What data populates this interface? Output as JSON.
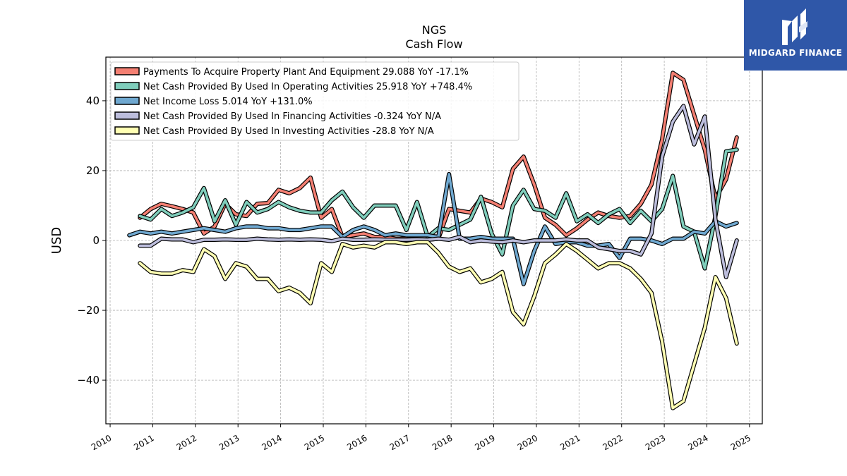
{
  "logo": {
    "text": "MIDGARD FINANCE",
    "color": "#2f57a8"
  },
  "chart_data": {
    "type": "line",
    "title": "NGS",
    "subtitle": "Cash Flow",
    "xlabel": "",
    "ylabel": "USD",
    "xlim": [
      2009.9,
      2025.3
    ],
    "ylim": [
      -52.5,
      52.5
    ],
    "x_ticks": [
      "2010",
      "2011",
      "2012",
      "2013",
      "2014",
      "2015",
      "2016",
      "2017",
      "2018",
      "2019",
      "2020",
      "2021",
      "2022",
      "2023",
      "2024",
      "2025"
    ],
    "y_ticks": [
      -40,
      -20,
      0,
      20,
      40
    ],
    "y_tick_labels": [
      "−40",
      "−20",
      "0",
      "20",
      "40"
    ],
    "grid": true,
    "legend_position": "top-left",
    "series": [
      {
        "name": "Payments To Acquire Property Plant And Equipment  29.088 YoY -17.1%",
        "color": "#f47f72",
        "points": [
          [
            2010.7,
            6.5
          ],
          [
            2010.95,
            9
          ],
          [
            2011.2,
            10.5
          ],
          [
            2011.45,
            9.8
          ],
          [
            2011.7,
            9
          ],
          [
            2011.95,
            8
          ],
          [
            2012.2,
            2
          ],
          [
            2012.45,
            4
          ],
          [
            2012.7,
            10.5
          ],
          [
            2012.95,
            7.5
          ],
          [
            2013.2,
            7
          ],
          [
            2013.45,
            10.5
          ],
          [
            2013.7,
            10.7
          ],
          [
            2013.95,
            14.5
          ],
          [
            2014.2,
            13.5
          ],
          [
            2014.45,
            15
          ],
          [
            2014.7,
            18
          ],
          [
            2014.95,
            6.5
          ],
          [
            2015.2,
            9
          ],
          [
            2015.45,
            1
          ],
          [
            2015.7,
            1.5
          ],
          [
            2015.95,
            2
          ],
          [
            2016.2,
            1
          ],
          [
            2016.45,
            1
          ],
          [
            2016.7,
            0.5
          ],
          [
            2016.95,
            0.5
          ],
          [
            2017.2,
            0.2
          ],
          [
            2017.45,
            0.2
          ],
          [
            2017.7,
            0.5
          ],
          [
            2017.95,
            9
          ],
          [
            2018.2,
            8.5
          ],
          [
            2018.45,
            8
          ],
          [
            2018.7,
            12
          ],
          [
            2018.95,
            11
          ],
          [
            2019.2,
            9.5
          ],
          [
            2019.45,
            20.5
          ],
          [
            2019.7,
            24
          ],
          [
            2019.95,
            16
          ],
          [
            2020.2,
            6.5
          ],
          [
            2020.45,
            4.5
          ],
          [
            2020.7,
            1.5
          ],
          [
            2020.95,
            3.5
          ],
          [
            2021.2,
            6
          ],
          [
            2021.45,
            8
          ],
          [
            2021.7,
            7
          ],
          [
            2021.95,
            6.5
          ],
          [
            2022.2,
            7
          ],
          [
            2022.45,
            10.5
          ],
          [
            2022.7,
            16
          ],
          [
            2022.95,
            29
          ],
          [
            2023.2,
            48
          ],
          [
            2023.45,
            46
          ],
          [
            2023.7,
            36
          ],
          [
            2023.95,
            26
          ],
          [
            2024.2,
            12
          ],
          [
            2024.45,
            17.5
          ],
          [
            2024.7,
            29.5
          ]
        ]
      },
      {
        "name": "Net Cash Provided By Used In Operating Activities  25.918 YoY +748.4%",
        "color": "#7fcdbb",
        "points": [
          [
            2010.7,
            7
          ],
          [
            2010.95,
            6
          ],
          [
            2011.2,
            9
          ],
          [
            2011.45,
            7
          ],
          [
            2011.7,
            8
          ],
          [
            2011.95,
            9.5
          ],
          [
            2012.2,
            15
          ],
          [
            2012.45,
            5.5
          ],
          [
            2012.7,
            11.5
          ],
          [
            2012.95,
            4.5
          ],
          [
            2013.2,
            11
          ],
          [
            2013.45,
            8
          ],
          [
            2013.7,
            9
          ],
          [
            2013.95,
            11
          ],
          [
            2014.2,
            9.5
          ],
          [
            2014.45,
            8.5
          ],
          [
            2014.7,
            8
          ],
          [
            2014.95,
            8
          ],
          [
            2015.2,
            11.5
          ],
          [
            2015.45,
            14
          ],
          [
            2015.7,
            9.5
          ],
          [
            2015.95,
            6.5
          ],
          [
            2016.2,
            10
          ],
          [
            2016.45,
            10
          ],
          [
            2016.7,
            10
          ],
          [
            2016.95,
            3
          ],
          [
            2017.2,
            11
          ],
          [
            2017.45,
            1
          ],
          [
            2017.7,
            3.5
          ],
          [
            2017.95,
            3
          ],
          [
            2018.2,
            4.5
          ],
          [
            2018.45,
            6
          ],
          [
            2018.7,
            12.5
          ],
          [
            2018.95,
            2
          ],
          [
            2019.2,
            -4
          ],
          [
            2019.45,
            10
          ],
          [
            2019.7,
            14.5
          ],
          [
            2019.95,
            9
          ],
          [
            2020.2,
            8.5
          ],
          [
            2020.45,
            6.5
          ],
          [
            2020.7,
            13.5
          ],
          [
            2020.95,
            5.5
          ],
          [
            2021.2,
            7.5
          ],
          [
            2021.45,
            5
          ],
          [
            2021.7,
            7.5
          ],
          [
            2021.95,
            9
          ],
          [
            2022.2,
            5
          ],
          [
            2022.45,
            8.5
          ],
          [
            2022.7,
            5.5
          ],
          [
            2022.95,
            9
          ],
          [
            2023.2,
            18.5
          ],
          [
            2023.45,
            4
          ],
          [
            2023.7,
            2.5
          ],
          [
            2023.95,
            -8
          ],
          [
            2024.2,
            7
          ],
          [
            2024.45,
            25.5
          ],
          [
            2024.7,
            26
          ]
        ]
      },
      {
        "name": "Net Income Loss  5.014 YoY +131.0%",
        "color": "#6fa8d0",
        "points": [
          [
            2010.45,
            1.5
          ],
          [
            2010.7,
            2.5
          ],
          [
            2010.95,
            2
          ],
          [
            2011.2,
            2.5
          ],
          [
            2011.45,
            2
          ],
          [
            2011.7,
            2.5
          ],
          [
            2011.95,
            3
          ],
          [
            2012.2,
            3.5
          ],
          [
            2012.45,
            3
          ],
          [
            2012.7,
            2.5
          ],
          [
            2012.95,
            3.5
          ],
          [
            2013.2,
            4
          ],
          [
            2013.45,
            4
          ],
          [
            2013.7,
            3.5
          ],
          [
            2013.95,
            3.5
          ],
          [
            2014.2,
            3
          ],
          [
            2014.45,
            3
          ],
          [
            2014.7,
            3.5
          ],
          [
            2014.95,
            4
          ],
          [
            2015.2,
            4
          ],
          [
            2015.45,
            1
          ],
          [
            2015.7,
            3
          ],
          [
            2015.95,
            4
          ],
          [
            2016.2,
            3
          ],
          [
            2016.45,
            1.5
          ],
          [
            2016.7,
            2
          ],
          [
            2016.95,
            1.5
          ],
          [
            2017.2,
            1.5
          ],
          [
            2017.45,
            1.5
          ],
          [
            2017.7,
            1
          ],
          [
            2017.95,
            19
          ],
          [
            2018.2,
            0.5
          ],
          [
            2018.45,
            0.5
          ],
          [
            2018.7,
            1
          ],
          [
            2018.95,
            0.5
          ],
          [
            2019.2,
            0.5
          ],
          [
            2019.45,
            0.5
          ],
          [
            2019.7,
            -12.5
          ],
          [
            2019.95,
            -3
          ],
          [
            2020.2,
            4
          ],
          [
            2020.45,
            -1
          ],
          [
            2020.7,
            -0.5
          ],
          [
            2020.95,
            -0.5
          ],
          [
            2021.2,
            -1.5
          ],
          [
            2021.45,
            -1.5
          ],
          [
            2021.7,
            -1
          ],
          [
            2021.95,
            -5
          ],
          [
            2022.2,
            0.5
          ],
          [
            2022.45,
            0.5
          ],
          [
            2022.7,
            0
          ],
          [
            2022.95,
            -1
          ],
          [
            2023.2,
            0.5
          ],
          [
            2023.45,
            0.5
          ],
          [
            2023.7,
            2.5
          ],
          [
            2023.95,
            2
          ],
          [
            2024.2,
            5.5
          ],
          [
            2024.45,
            4
          ],
          [
            2024.7,
            5
          ]
        ]
      },
      {
        "name": "Net Cash Provided By Used In Financing Activities  -0.324 YoY N/A",
        "color": "#bcbddc",
        "points": [
          [
            2010.7,
            -1.5
          ],
          [
            2010.95,
            -1.5
          ],
          [
            2011.2,
            0.5
          ],
          [
            2011.45,
            0.3
          ],
          [
            2011.7,
            0.3
          ],
          [
            2011.95,
            -0.5
          ],
          [
            2012.2,
            0.2
          ],
          [
            2012.45,
            0.2
          ],
          [
            2012.7,
            0.3
          ],
          [
            2012.95,
            0.2
          ],
          [
            2013.2,
            0.2
          ],
          [
            2013.45,
            0.5
          ],
          [
            2013.7,
            0.3
          ],
          [
            2013.95,
            0.2
          ],
          [
            2014.2,
            0.3
          ],
          [
            2014.45,
            0.2
          ],
          [
            2014.7,
            0.3
          ],
          [
            2014.95,
            0.2
          ],
          [
            2015.2,
            -0.2
          ],
          [
            2015.45,
            0.5
          ],
          [
            2015.7,
            0.2
          ],
          [
            2015.95,
            0.2
          ],
          [
            2016.2,
            0.3
          ],
          [
            2016.45,
            0.2
          ],
          [
            2016.7,
            0.2
          ],
          [
            2016.95,
            0.2
          ],
          [
            2017.2,
            0.3
          ],
          [
            2017.45,
            0.2
          ],
          [
            2017.7,
            0.5
          ],
          [
            2017.95,
            0.2
          ],
          [
            2018.2,
            1
          ],
          [
            2018.45,
            -0.5
          ],
          [
            2018.7,
            0
          ],
          [
            2018.95,
            -0.3
          ],
          [
            2019.2,
            -0.5
          ],
          [
            2019.45,
            0
          ],
          [
            2019.7,
            -0.5
          ],
          [
            2019.95,
            0
          ],
          [
            2020.2,
            0
          ],
          [
            2020.45,
            0
          ],
          [
            2020.7,
            0.3
          ],
          [
            2020.95,
            0
          ],
          [
            2021.2,
            0
          ],
          [
            2021.45,
            -2
          ],
          [
            2021.7,
            -2.5
          ],
          [
            2021.95,
            -3
          ],
          [
            2022.2,
            -3
          ],
          [
            2022.45,
            -4
          ],
          [
            2022.7,
            2
          ],
          [
            2022.95,
            24
          ],
          [
            2023.2,
            34
          ],
          [
            2023.45,
            38.5
          ],
          [
            2023.7,
            27.5
          ],
          [
            2023.95,
            35.5
          ],
          [
            2024.2,
            6
          ],
          [
            2024.45,
            -10.5
          ],
          [
            2024.7,
            0
          ]
        ]
      },
      {
        "name": "Net Cash Provided By Used In Investing Activities  -28.8 YoY N/A",
        "color": "#ffffb3",
        "points": [
          [
            2010.7,
            -6.5
          ],
          [
            2010.95,
            -9
          ],
          [
            2011.2,
            -9.5
          ],
          [
            2011.45,
            -9.5
          ],
          [
            2011.7,
            -8.5
          ],
          [
            2011.95,
            -9
          ],
          [
            2012.2,
            -2.5
          ],
          [
            2012.45,
            -4.5
          ],
          [
            2012.7,
            -11
          ],
          [
            2012.95,
            -6.5
          ],
          [
            2013.2,
            -7.5
          ],
          [
            2013.45,
            -11
          ],
          [
            2013.7,
            -11
          ],
          [
            2013.95,
            -14.5
          ],
          [
            2014.2,
            -13.5
          ],
          [
            2014.45,
            -15
          ],
          [
            2014.7,
            -18
          ],
          [
            2014.95,
            -6.5
          ],
          [
            2015.2,
            -9
          ],
          [
            2015.45,
            -1
          ],
          [
            2015.7,
            -2
          ],
          [
            2015.95,
            -1.5
          ],
          [
            2016.2,
            -2
          ],
          [
            2016.45,
            -0.5
          ],
          [
            2016.7,
            -0.5
          ],
          [
            2016.95,
            -1
          ],
          [
            2017.2,
            -0.5
          ],
          [
            2017.45,
            -0.5
          ],
          [
            2017.7,
            -3.5
          ],
          [
            2017.95,
            -7.5
          ],
          [
            2018.2,
            -9
          ],
          [
            2018.45,
            -8
          ],
          [
            2018.7,
            -12
          ],
          [
            2018.95,
            -11
          ],
          [
            2019.2,
            -9
          ],
          [
            2019.45,
            -20.5
          ],
          [
            2019.7,
            -24
          ],
          [
            2019.95,
            -16
          ],
          [
            2020.2,
            -6.5
          ],
          [
            2020.45,
            -4
          ],
          [
            2020.7,
            -1
          ],
          [
            2020.95,
            -3
          ],
          [
            2021.2,
            -5.5
          ],
          [
            2021.45,
            -8
          ],
          [
            2021.7,
            -6.5
          ],
          [
            2021.95,
            -6.5
          ],
          [
            2022.2,
            -8
          ],
          [
            2022.45,
            -11
          ],
          [
            2022.7,
            -15
          ],
          [
            2022.95,
            -29
          ],
          [
            2023.2,
            -48
          ],
          [
            2023.45,
            -46
          ],
          [
            2023.7,
            -35.5
          ],
          [
            2023.95,
            -25
          ],
          [
            2024.2,
            -10.5
          ],
          [
            2024.45,
            -16.5
          ],
          [
            2024.7,
            -29.5
          ]
        ]
      }
    ]
  }
}
